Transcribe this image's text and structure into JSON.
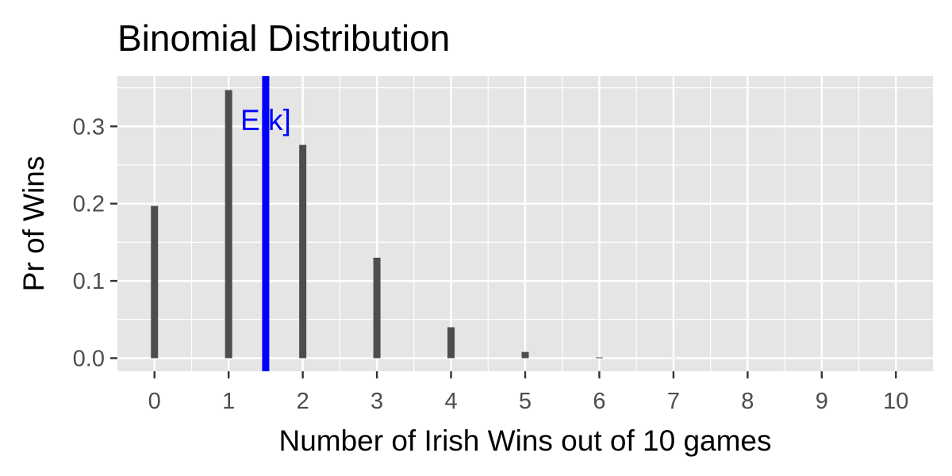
{
  "chart_data": {
    "type": "bar",
    "title": "Binomial Distribution",
    "xlabel": "Number of Irish Wins  out of 10 games",
    "ylabel": "Pr of Wins",
    "x": [
      0,
      1,
      2,
      3,
      4,
      5,
      6,
      7,
      8,
      9,
      10
    ],
    "values": [
      0.197,
      0.347,
      0.276,
      0.13,
      0.04,
      0.008,
      0.001,
      0.0001,
      0.0,
      0.0,
      0.0
    ],
    "xlim": [
      -0.5,
      10.5
    ],
    "ylim": [
      -0.017,
      0.365
    ],
    "x_ticks": [
      "0",
      "1",
      "2",
      "3",
      "4",
      "5",
      "6",
      "7",
      "8",
      "9",
      "10"
    ],
    "y_ticks": [
      "0.0",
      "0.1",
      "0.2",
      "0.3"
    ],
    "y_tick_values": [
      0.0,
      0.1,
      0.2,
      0.3
    ],
    "grid": true,
    "reference_line": {
      "x": 1.5,
      "label": "E[k]",
      "color": "#0000ff"
    },
    "colors": {
      "bar": "#4d4d4d",
      "panel": "#e5e5e5",
      "grid": "#ffffff",
      "text": "#4d4d4d"
    }
  }
}
